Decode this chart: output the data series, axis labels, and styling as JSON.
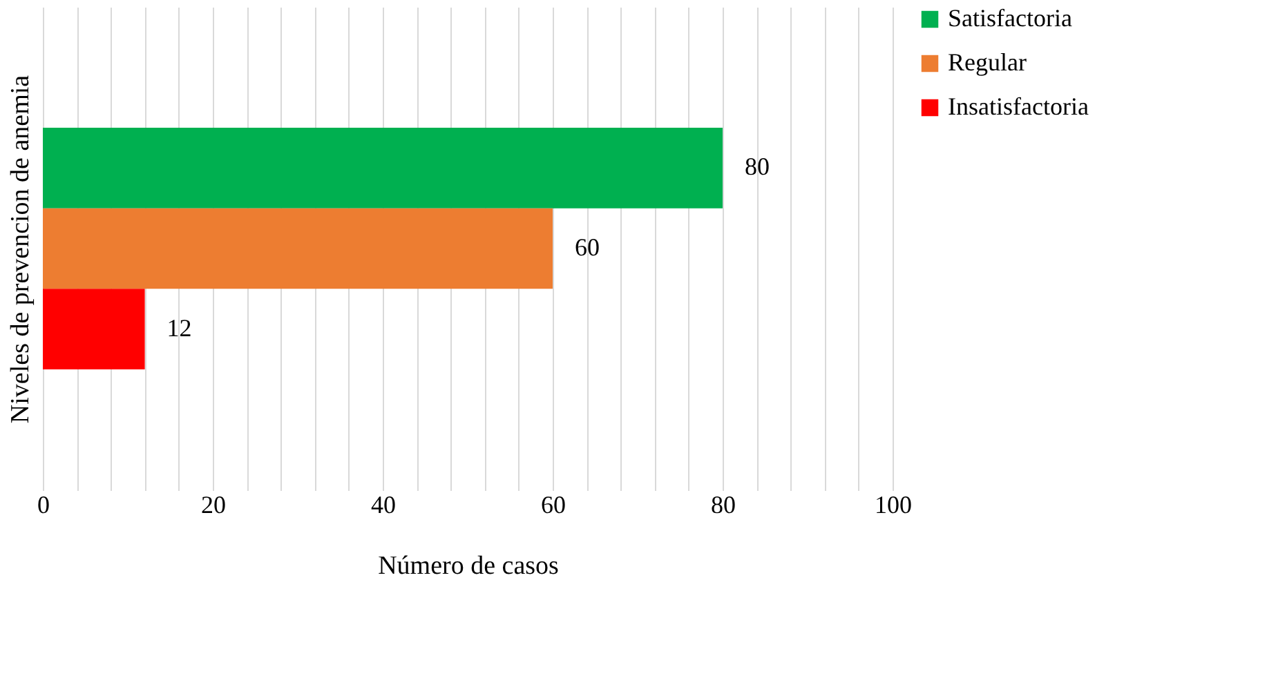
{
  "chart_data": {
    "type": "bar",
    "orientation": "horizontal",
    "categories": [
      null
    ],
    "series": [
      {
        "name": "Satisfactoria",
        "color": "#00b050",
        "values": [
          80
        ]
      },
      {
        "name": "Regular",
        "color": "#ed7d31",
        "values": [
          60
        ]
      },
      {
        "name": "Insatisfactoria",
        "color": "#ff0000",
        "values": [
          12
        ]
      }
    ],
    "xlabel": "Número de casos",
    "ylabel": "Niveles de prevencion de anemia",
    "xlim": [
      0,
      100
    ],
    "xticks": [
      0,
      {
        "value": 4,
        "label": null
      },
      {
        "value": 8,
        "label": null
      },
      {
        "value": 12,
        "label": null
      },
      {
        "value": 16,
        "label": null
      },
      20,
      {
        "value": 24,
        "label": null
      },
      {
        "value": 28,
        "label": null
      },
      {
        "value": 32,
        "label": null
      },
      {
        "value": 36,
        "label": null
      },
      40,
      {
        "value": 44,
        "label": null
      },
      {
        "value": 48,
        "label": null
      },
      {
        "value": 52,
        "label": null
      },
      {
        "value": 56,
        "label": null
      },
      60,
      {
        "value": 64,
        "label": null
      },
      {
        "value": 68,
        "label": null
      },
      {
        "value": 72,
        "label": null
      },
      {
        "value": 76,
        "label": null
      },
      80,
      {
        "value": 84,
        "label": null
      },
      {
        "value": 88,
        "label": null
      },
      {
        "value": 92,
        "label": null
      },
      {
        "value": 96,
        "label": null
      },
      100
    ],
    "grid": "x",
    "legend": "right",
    "data_labels": true
  }
}
